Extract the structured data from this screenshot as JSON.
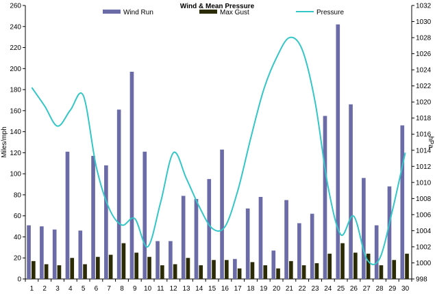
{
  "chart_data": {
    "type": "bar",
    "title": "Wind & Mean Pressure",
    "x": [
      "1",
      "2",
      "3",
      "4",
      "5",
      "6",
      "7",
      "8",
      "9",
      "10",
      "11",
      "12",
      "13",
      "14",
      "15",
      "16",
      "17",
      "18",
      "19",
      "20",
      "21",
      "22",
      "23",
      "24",
      "25",
      "26",
      "27",
      "28",
      "29",
      "30"
    ],
    "ylabel": "Miles/mph",
    "y2label": "hPa",
    "ylim": [
      0,
      260
    ],
    "y2lim": [
      998,
      1032
    ],
    "yticks": [
      0,
      20,
      40,
      60,
      80,
      100,
      120,
      140,
      160,
      180,
      200,
      220,
      240,
      260
    ],
    "y2ticks": [
      998,
      1000,
      1002,
      1004,
      1006,
      1008,
      1010,
      1012,
      1014,
      1016,
      1018,
      1020,
      1022,
      1024,
      1026,
      1028,
      1030,
      1032
    ],
    "grid": false,
    "legend_position": "top",
    "series": [
      {
        "name": "Wind Run",
        "type": "bar",
        "axis": "left",
        "color": "#6b6ba8",
        "values": [
          51,
          50,
          47,
          121,
          46,
          117,
          108,
          161,
          197,
          121,
          36,
          36,
          79,
          76,
          95,
          123,
          19,
          67,
          78,
          27,
          75,
          53,
          62,
          155,
          242,
          166,
          96,
          51,
          88,
          146
        ]
      },
      {
        "name": "Max Gust",
        "type": "bar",
        "axis": "left",
        "color": "#2b2b05",
        "values": [
          17,
          14,
          13,
          20,
          14,
          21,
          23,
          34,
          25,
          21,
          13,
          14,
          20,
          13,
          18,
          18,
          10,
          16,
          13,
          10,
          17,
          13,
          15,
          24,
          34,
          25,
          24,
          13,
          18,
          24
        ]
      },
      {
        "name": "Pressure",
        "type": "line",
        "axis": "right",
        "color": "#33c6c6",
        "values": [
          1021.8,
          1019.5,
          1017.0,
          1019.0,
          1020.8,
          1012.0,
          1006.8,
          1004.7,
          1005.5,
          1002.0,
          1007.5,
          1013.7,
          1010.5,
          1007.0,
          1004.3,
          1004.5,
          1009.0,
          1015.5,
          1021.5,
          1025.5,
          1028.0,
          1026.5,
          1020.0,
          1009.5,
          1003.5,
          1005.8,
          1000.5,
          1000.5,
          1006.5,
          1013.7
        ]
      }
    ]
  }
}
